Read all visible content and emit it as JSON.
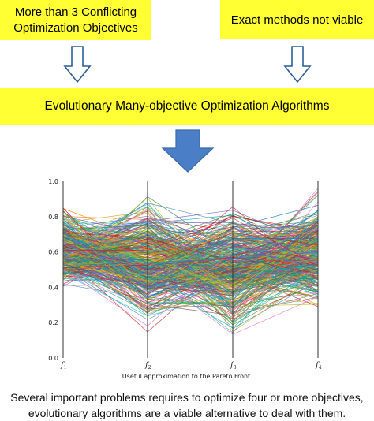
{
  "boxes": {
    "left_line1": "More than 3  Conflicting",
    "left_line2": "Optimization Objectives",
    "right": "Exact methods not viable",
    "middle": "Evolutionary Many-objective Optimization Algorithms"
  },
  "colors": {
    "highlight": "#ffff33",
    "outline_arrow": "#2e5d96",
    "solid_arrow": "#4a7ec6"
  },
  "icons": {
    "left_arrow": "hollow-down-arrow",
    "right_arrow": "hollow-down-arrow",
    "center_arrow": "solid-down-arrow"
  },
  "chart_data": {
    "type": "parallel-coordinates",
    "axes": [
      "f1",
      "f2",
      "f3",
      "f4"
    ],
    "ylim": [
      0.0,
      1.0
    ],
    "yticks": [
      "0.0",
      "0.2",
      "0.4",
      "0.6",
      "0.8",
      "1.0"
    ],
    "xlabel": "Useful approximation to the Pareto Front",
    "num_solutions": 400,
    "value_ranges": {
      "f1": [
        0.05,
        0.95
      ],
      "f2": [
        0.0,
        1.0
      ],
      "f3": [
        0.0,
        1.0
      ],
      "f4": [
        0.0,
        1.0
      ]
    }
  },
  "caption": {
    "line1": "Several important problems requires to optimize four or more objectives,",
    "line2": "evolutionary algorithms are a viable alternative to deal with them."
  }
}
